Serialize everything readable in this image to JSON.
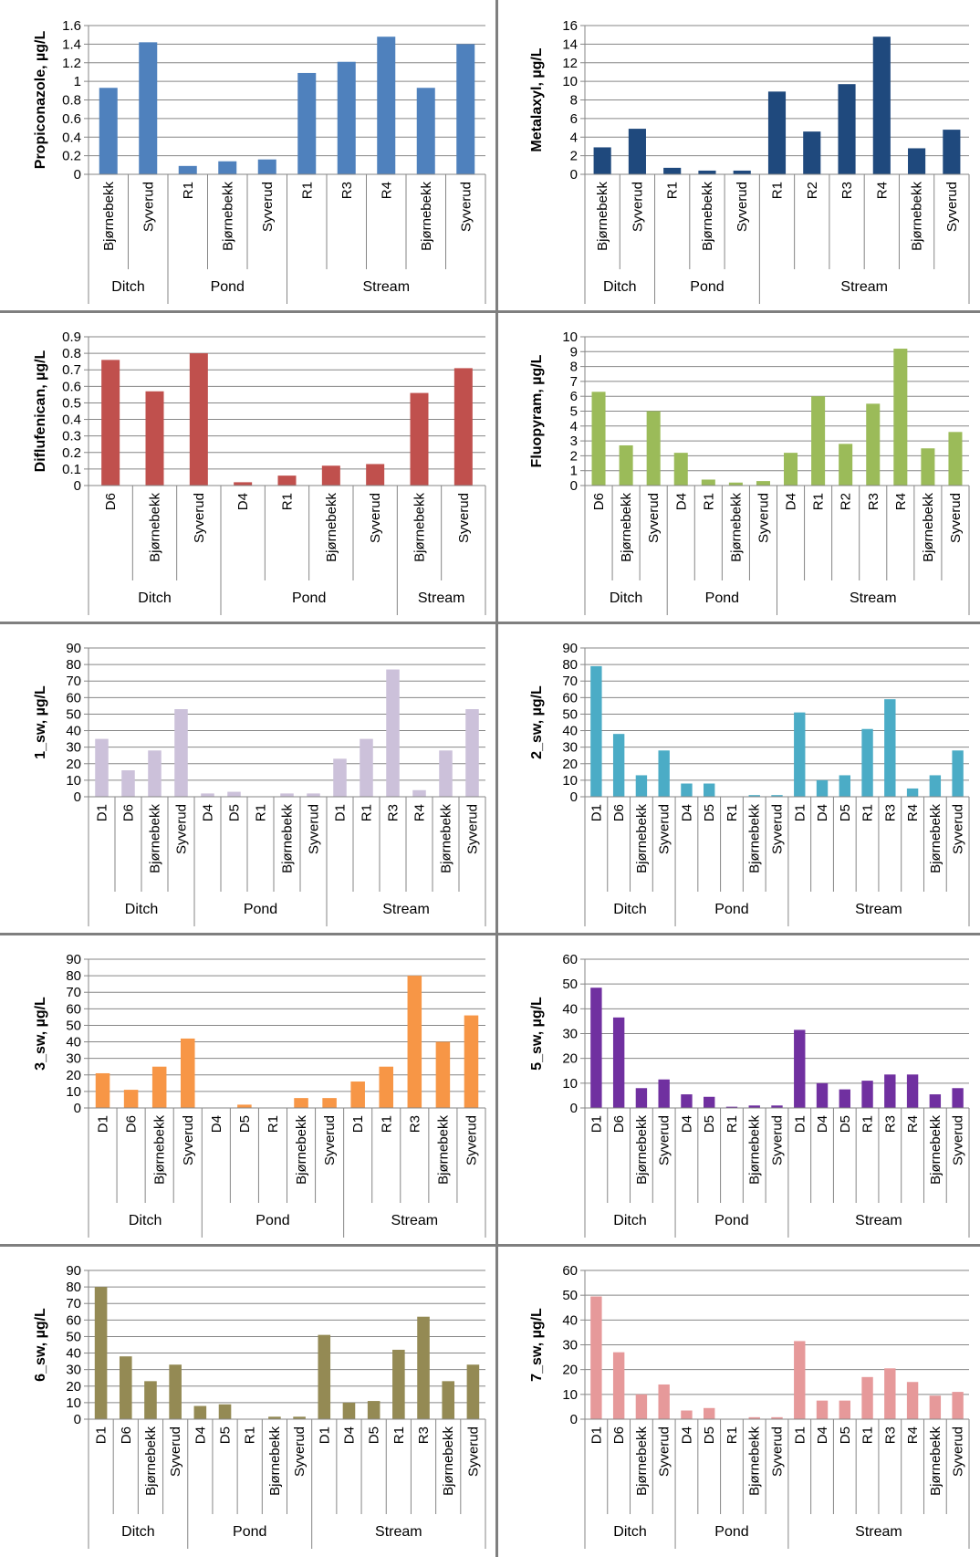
{
  "charts_grid": "2x5",
  "chart_data": [
    {
      "type": "bar",
      "ylabel": "Propiconazole, µg/L",
      "ylim": [
        0,
        1.6
      ],
      "ytick_step": 0.2,
      "ytick_labels": [
        "0",
        "0.2",
        "0.4",
        "0.6",
        "0.8",
        "1",
        "1.2",
        "1.4",
        "1.6"
      ],
      "color": "#4f81bd",
      "grid": true,
      "groups": [
        {
          "label": "Ditch",
          "categories": [
            "Bjørnebekk",
            "Syverud"
          ],
          "values": [
            0.93,
            1.42
          ]
        },
        {
          "label": "Pond",
          "categories": [
            "R1",
            "Bjørnebekk",
            "Syverud"
          ],
          "values": [
            0.09,
            0.14,
            0.16
          ]
        },
        {
          "label": "Stream",
          "categories": [
            "R1",
            "R3",
            "R4",
            "Bjørnebekk",
            "Syverud"
          ],
          "values": [
            1.09,
            1.21,
            1.48,
            0.93,
            1.4
          ]
        }
      ]
    },
    {
      "type": "bar",
      "ylabel": "Metalaxyl, µg/L",
      "ylim": [
        0,
        16
      ],
      "ytick_step": 2,
      "ytick_labels": [
        "0",
        "2",
        "4",
        "6",
        "8",
        "10",
        "12",
        "14",
        "16"
      ],
      "color": "#1f497d",
      "grid": true,
      "groups": [
        {
          "label": "Ditch",
          "categories": [
            "Bjørnebekk",
            "Syverud"
          ],
          "values": [
            2.9,
            4.9
          ]
        },
        {
          "label": "Pond",
          "categories": [
            "R1",
            "Bjørnebekk",
            "Syverud"
          ],
          "values": [
            0.7,
            0.4,
            0.4
          ]
        },
        {
          "label": "Stream",
          "categories": [
            "R1",
            "R2",
            "R3",
            "R4",
            "Bjørnebekk",
            "Syverud"
          ],
          "values": [
            8.9,
            4.6,
            9.7,
            14.8,
            2.8,
            4.8
          ]
        }
      ]
    },
    {
      "type": "bar",
      "ylabel": "Diflufenican, µg/L",
      "ylim": [
        0,
        0.9
      ],
      "ytick_step": 0.1,
      "ytick_labels": [
        "0",
        "0.1",
        "0.2",
        "0.3",
        "0.4",
        "0.5",
        "0.6",
        "0.7",
        "0.8",
        "0.9"
      ],
      "color": "#c0504d",
      "grid": true,
      "groups": [
        {
          "label": "Ditch",
          "categories": [
            "D6",
            "Bjørnebekk",
            "Syverud"
          ],
          "values": [
            0.76,
            0.57,
            0.8
          ]
        },
        {
          "label": "Pond",
          "categories": [
            "D4",
            "R1",
            "Bjørnebekk",
            "Syverud"
          ],
          "values": [
            0.02,
            0.06,
            0.12,
            0.13
          ]
        },
        {
          "label": "Stream",
          "categories": [
            "Bjørnebekk",
            "Syverud"
          ],
          "values": [
            0.56,
            0.71
          ]
        }
      ]
    },
    {
      "type": "bar",
      "ylabel": "Fluopyram, µg/L",
      "ylim": [
        0,
        10
      ],
      "ytick_step": 1,
      "ytick_labels": [
        "0",
        "1",
        "2",
        "3",
        "4",
        "5",
        "6",
        "7",
        "8",
        "9",
        "10"
      ],
      "color": "#9bbb59",
      "grid": true,
      "groups": [
        {
          "label": "Ditch",
          "categories": [
            "D6",
            "Bjørnebekk",
            "Syverud"
          ],
          "values": [
            6.3,
            2.7,
            5.0
          ]
        },
        {
          "label": "Pond",
          "categories": [
            "D4",
            "R1",
            "Bjørnebekk",
            "Syverud"
          ],
          "values": [
            2.2,
            0.4,
            0.2,
            0.3
          ]
        },
        {
          "label": "Stream",
          "categories": [
            "D4",
            "R1",
            "R2",
            "R3",
            "R4",
            "Bjørnebekk",
            "Syverud"
          ],
          "values": [
            2.2,
            6.0,
            2.8,
            5.5,
            9.2,
            2.5,
            3.6
          ]
        }
      ]
    },
    {
      "type": "bar",
      "ylabel": "1_sw, µg/L",
      "ylim": [
        0,
        90
      ],
      "ytick_step": 10,
      "ytick_labels": [
        "0",
        "10",
        "20",
        "30",
        "40",
        "50",
        "60",
        "70",
        "80",
        "90"
      ],
      "color": "#ccc1da",
      "grid": true,
      "groups": [
        {
          "label": "Ditch",
          "categories": [
            "D1",
            "D6",
            "Bjørnebekk",
            "Syverud"
          ],
          "values": [
            35,
            16,
            28,
            53
          ]
        },
        {
          "label": "Pond",
          "categories": [
            "D4",
            "D5",
            "R1",
            "Bjørnebekk",
            "Syverud"
          ],
          "values": [
            2,
            3,
            0,
            2,
            2
          ]
        },
        {
          "label": "Stream",
          "categories": [
            "D1",
            "R1",
            "R3",
            "R4",
            "Bjørnebekk",
            "Syverud"
          ],
          "values": [
            23,
            35,
            77,
            4,
            28,
            53
          ]
        }
      ]
    },
    {
      "type": "bar",
      "ylabel": "2_sw, µg/L",
      "ylim": [
        0,
        90
      ],
      "ytick_step": 10,
      "ytick_labels": [
        "0",
        "10",
        "20",
        "30",
        "40",
        "50",
        "60",
        "70",
        "80",
        "90"
      ],
      "color": "#4bacc6",
      "grid": true,
      "groups": [
        {
          "label": "Ditch",
          "categories": [
            "D1",
            "D6",
            "Bjørnebekk",
            "Syverud"
          ],
          "values": [
            79,
            38,
            13,
            28
          ]
        },
        {
          "label": "Pond",
          "categories": [
            "D4",
            "D5",
            "R1",
            "Bjørnebekk",
            "Syverud"
          ],
          "values": [
            8,
            8,
            0,
            1,
            1
          ]
        },
        {
          "label": "Stream",
          "categories": [
            "D1",
            "D4",
            "D5",
            "R1",
            "R3",
            "R4",
            "Bjørnebekk",
            "Syverud"
          ],
          "values": [
            51,
            10,
            13,
            41,
            59,
            5,
            13,
            28
          ]
        }
      ]
    },
    {
      "type": "bar",
      "ylabel": "3_sw, µg/L",
      "ylim": [
        0,
        90
      ],
      "ytick_step": 10,
      "ytick_labels": [
        "0",
        "10",
        "20",
        "30",
        "40",
        "50",
        "60",
        "70",
        "80",
        "90"
      ],
      "color": "#f79646",
      "grid": true,
      "groups": [
        {
          "label": "Ditch",
          "categories": [
            "D1",
            "D6",
            "Bjørnebekk",
            "Syverud"
          ],
          "values": [
            21,
            11,
            25,
            42
          ]
        },
        {
          "label": "Pond",
          "categories": [
            "D4",
            "D5",
            "R1",
            "Bjørnebekk",
            "Syverud"
          ],
          "values": [
            0,
            2,
            0,
            6,
            6
          ]
        },
        {
          "label": "Stream",
          "categories": [
            "D1",
            "R1",
            "R3",
            "Bjørnebekk",
            "Syverud"
          ],
          "values": [
            16,
            25,
            80,
            40,
            56
          ]
        }
      ]
    },
    {
      "type": "bar",
      "ylabel": "5_sw, µg/L",
      "ylim": [
        0,
        60
      ],
      "ytick_step": 10,
      "ytick_labels": [
        "0",
        "10",
        "20",
        "30",
        "40",
        "50",
        "60"
      ],
      "color": "#7030a0",
      "grid": true,
      "groups": [
        {
          "label": "Ditch",
          "categories": [
            "D1",
            "D6",
            "Bjørnebekk",
            "Syverud"
          ],
          "values": [
            48.5,
            36.5,
            8,
            11.5
          ]
        },
        {
          "label": "Pond",
          "categories": [
            "D4",
            "D5",
            "R1",
            "Bjørnebekk",
            "Syverud"
          ],
          "values": [
            5.5,
            4.5,
            0.5,
            1,
            1
          ]
        },
        {
          "label": "Stream",
          "categories": [
            "D1",
            "D4",
            "D5",
            "R1",
            "R3",
            "R4",
            "Bjørnebekk",
            "Syverud"
          ],
          "values": [
            31.5,
            10,
            7.5,
            11,
            13.5,
            13.5,
            5.5,
            8
          ]
        }
      ]
    },
    {
      "type": "bar",
      "ylabel": "6_sw, µg/L",
      "ylim": [
        0,
        90
      ],
      "ytick_step": 10,
      "ytick_labels": [
        "0",
        "10",
        "20",
        "30",
        "40",
        "50",
        "60",
        "70",
        "80",
        "90"
      ],
      "color": "#948a54",
      "grid": true,
      "groups": [
        {
          "label": "Ditch",
          "categories": [
            "D1",
            "D6",
            "Bjørnebekk",
            "Syverud"
          ],
          "values": [
            80,
            38,
            23,
            33
          ]
        },
        {
          "label": "Pond",
          "categories": [
            "D4",
            "D5",
            "R1",
            "Bjørnebekk",
            "Syverud"
          ],
          "values": [
            8,
            9,
            0,
            1.5,
            1.5
          ]
        },
        {
          "label": "Stream",
          "categories": [
            "D1",
            "D4",
            "D5",
            "R1",
            "R3",
            "Bjørnebekk",
            "Syverud"
          ],
          "values": [
            51,
            10,
            11,
            42,
            62,
            23,
            33
          ]
        }
      ]
    },
    {
      "type": "bar",
      "ylabel": "7_sw, µg/L",
      "ylim": [
        0,
        60
      ],
      "ytick_step": 10,
      "ytick_labels": [
        "0",
        "10",
        "20",
        "30",
        "40",
        "50",
        "60"
      ],
      "color": "#e6999a",
      "grid": true,
      "groups": [
        {
          "label": "Ditch",
          "categories": [
            "D1",
            "D6",
            "Bjørnebekk",
            "Syverud"
          ],
          "values": [
            49.5,
            27,
            10,
            14
          ]
        },
        {
          "label": "Pond",
          "categories": [
            "D4",
            "D5",
            "R1",
            "Bjørnebekk",
            "Syverud"
          ],
          "values": [
            3.5,
            4.5,
            0,
            0.8,
            0.8
          ]
        },
        {
          "label": "Stream",
          "categories": [
            "D1",
            "D4",
            "D5",
            "R1",
            "R3",
            "R4",
            "Bjørnebekk",
            "Syverud"
          ],
          "values": [
            31.5,
            7.5,
            7.5,
            17,
            20.5,
            15,
            9.5,
            11
          ]
        }
      ]
    }
  ]
}
